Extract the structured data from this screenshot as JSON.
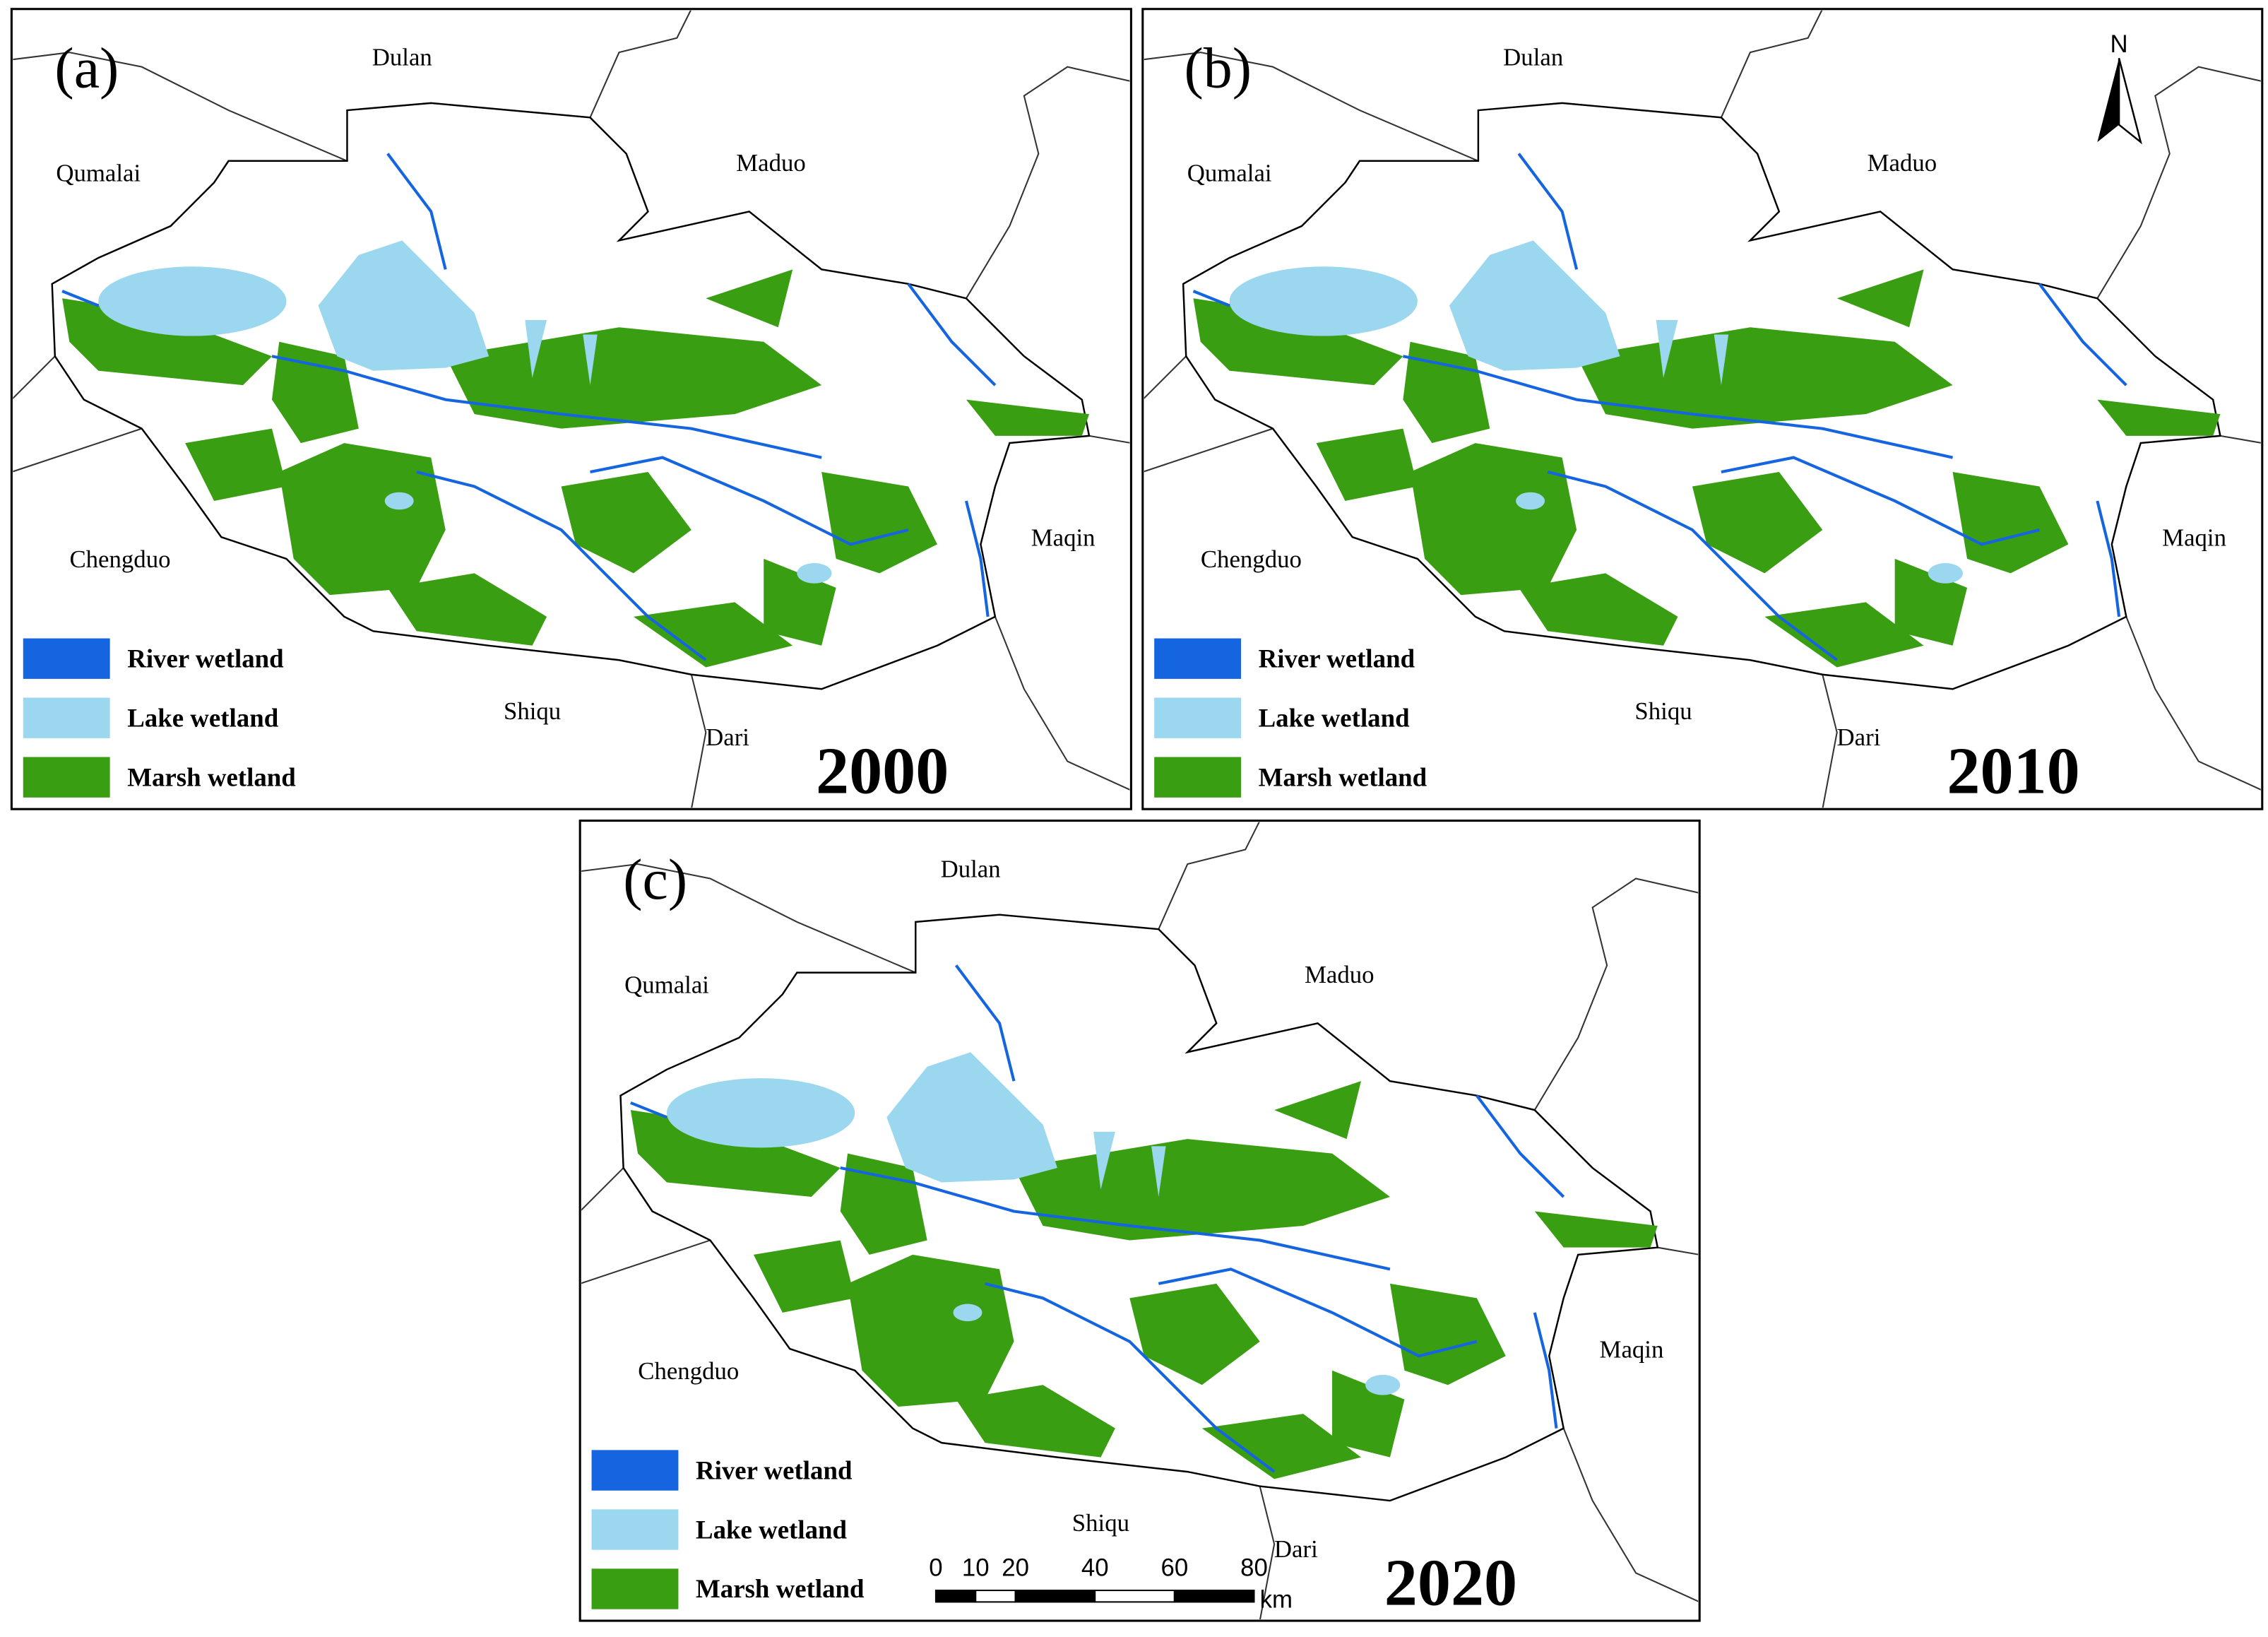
{
  "panels": [
    {
      "label": "(a)",
      "year": "2000",
      "places": [
        "Dulan",
        "Qumalai",
        "Maduo",
        "Chengduo",
        "Maqin",
        "Shiqu",
        "Dari"
      ],
      "legend": [
        "River wetland",
        "Lake wetland",
        "Marsh wetland"
      ]
    },
    {
      "label": "(b)",
      "year": "2010",
      "places": [
        "Dulan",
        "Qumalai",
        "Maduo",
        "Chengduo",
        "Maqin",
        "Shiqu",
        "Dari"
      ],
      "legend": [
        "River wetland",
        "Lake wetland",
        "Marsh wetland"
      ]
    },
    {
      "label": "(c)",
      "year": "2020",
      "places": [
        "Dulan",
        "Qumalai",
        "Maduo",
        "Chengduo",
        "Maqin",
        "Shiqu",
        "Dari"
      ],
      "legend": [
        "River wetland",
        "Lake wetland",
        "Marsh wetland"
      ]
    }
  ],
  "north_arrow": "N",
  "scale_bar": {
    "ticks": [
      0,
      10,
      20,
      40,
      60,
      80
    ],
    "unit": "km"
  }
}
